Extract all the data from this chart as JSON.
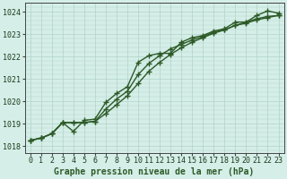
{
  "xlabel": "Graphe pression niveau de la mer (hPa)",
  "ylim": [
    1017.7,
    1024.4
  ],
  "xlim": [
    -0.5,
    23.5
  ],
  "yticks": [
    1018,
    1019,
    1020,
    1021,
    1022,
    1023,
    1024
  ],
  "xticks": [
    0,
    1,
    2,
    3,
    4,
    5,
    6,
    7,
    8,
    9,
    10,
    11,
    12,
    13,
    14,
    15,
    16,
    17,
    18,
    19,
    20,
    21,
    22,
    23
  ],
  "bg_color": "#d5eee8",
  "grid_color": "#b0d4c8",
  "line_color": "#2d5a27",
  "line1": [
    1018.25,
    1018.35,
    1018.55,
    1019.05,
    1018.65,
    1019.15,
    1019.2,
    1019.95,
    1020.35,
    1020.65,
    1021.75,
    1022.05,
    1022.15,
    1022.15,
    1022.65,
    1022.85,
    1022.95,
    1023.15,
    1023.25,
    1023.55,
    1023.55,
    1023.85,
    1024.05,
    1023.95
  ],
  "line2": [
    1018.25,
    1018.35,
    1018.55,
    1019.05,
    1019.05,
    1019.05,
    1019.1,
    1019.45,
    1019.85,
    1020.25,
    1020.8,
    1021.35,
    1021.75,
    1022.1,
    1022.4,
    1022.65,
    1022.85,
    1023.05,
    1023.2,
    1023.4,
    1023.55,
    1023.7,
    1023.8,
    1023.85
  ],
  "line3": [
    1018.25,
    1018.35,
    1018.55,
    1019.05,
    1019.05,
    1019.05,
    1019.1,
    1019.65,
    1020.1,
    1020.45,
    1021.2,
    1021.7,
    1022.05,
    1022.35,
    1022.55,
    1022.75,
    1022.9,
    1023.1,
    1023.2,
    1023.4,
    1023.5,
    1023.65,
    1023.75,
    1023.85
  ],
  "marker": "+",
  "marker_size": 4,
  "line_width": 1.0,
  "tick_fontsize": 6,
  "label_fontsize": 7
}
